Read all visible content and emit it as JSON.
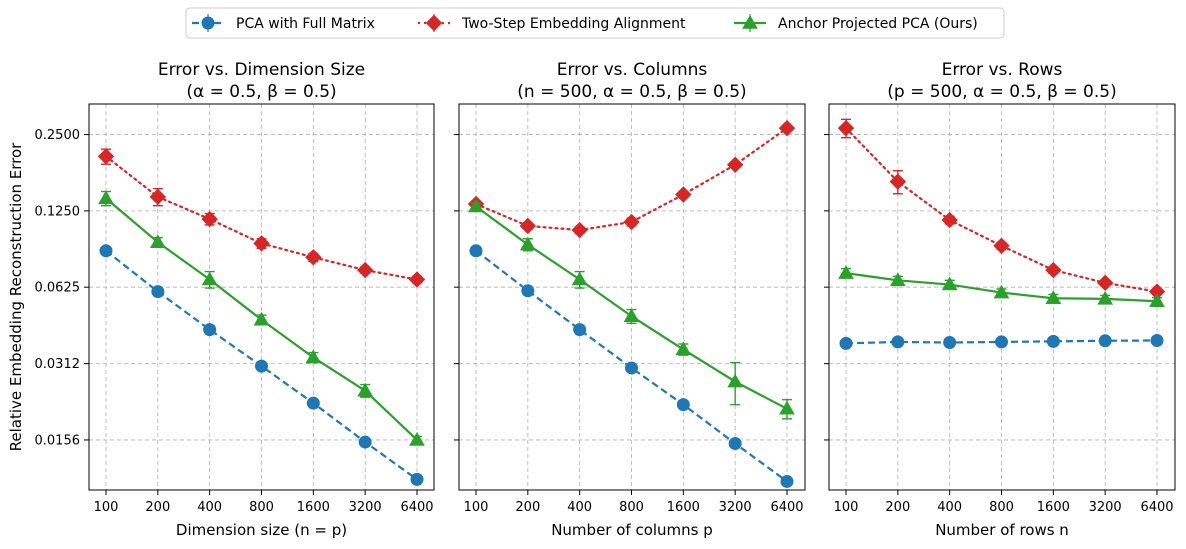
{
  "chart_data": [
    {
      "type": "line",
      "title": "Error vs. Dimension Size",
      "subtitle": "(α = 0.5, β = 0.5)",
      "xlabel": "Dimension size (n = p)",
      "ylabel": "Relative Embedding Reconstruction Error",
      "x": [
        100,
        200,
        400,
        800,
        1600,
        3200,
        6400
      ],
      "x_tick_labels": [
        "100",
        "200",
        "400",
        "800",
        "1600",
        "3200",
        "6400"
      ],
      "y_tick_values": [
        0.0156,
        0.0312,
        0.0625,
        0.125,
        0.25
      ],
      "y_tick_labels": [
        "0.0156",
        "0.0312",
        "0.0625",
        "0.1250",
        "0.2500"
      ],
      "ylim": [
        0.0099,
        0.33
      ],
      "yscale": "log2",
      "series": [
        {
          "name": "PCA with Full Matrix",
          "values": [
            0.087,
            0.06,
            0.0425,
            0.0305,
            0.0218,
            0.0153,
            0.0109
          ],
          "err": [
            0,
            0,
            0,
            0,
            0,
            0,
            0
          ]
        },
        {
          "name": "Two-Step Embedding Alignment",
          "values": [
            0.205,
            0.142,
            0.116,
            0.093,
            0.082,
            0.073,
            0.067
          ],
          "err": [
            0.014,
            0.011,
            0.006,
            0.004,
            0.003,
            0.002,
            0.002
          ]
        },
        {
          "name": "Anchor Projected PCA (Ours)",
          "values": [
            0.14,
            0.094,
            0.067,
            0.0465,
            0.033,
            0.0244,
            0.0156
          ],
          "err": [
            0.009,
            0.004,
            0.005,
            0.002,
            0.0015,
            0.0014,
            0.0005
          ]
        }
      ]
    },
    {
      "type": "line",
      "title": "Error vs. Columns",
      "subtitle": "(n = 500, α = 0.5, β = 0.5)",
      "xlabel": "Number of columns p",
      "ylabel": "",
      "x": [
        100,
        200,
        400,
        800,
        1600,
        3200,
        6400
      ],
      "x_tick_labels": [
        "100",
        "200",
        "400",
        "800",
        "1600",
        "3200",
        "6400"
      ],
      "y_tick_values": [
        0.0156,
        0.0312,
        0.0625,
        0.125,
        0.25
      ],
      "ylim": [
        0.0099,
        0.33
      ],
      "yscale": "log2",
      "series": [
        {
          "name": "PCA with Full Matrix",
          "values": [
            0.087,
            0.0605,
            0.0425,
            0.03,
            0.0215,
            0.0151,
            0.0107
          ],
          "err": [
            0,
            0,
            0,
            0,
            0,
            0,
            0
          ]
        },
        {
          "name": "Two-Step Embedding Alignment",
          "values": [
            0.133,
            0.109,
            0.105,
            0.113,
            0.145,
            0.19,
            0.265
          ],
          "err": [
            0.003,
            0.003,
            0.003,
            0.004,
            0.004,
            0.004,
            0.006
          ]
        },
        {
          "name": "Anchor Projected PCA (Ours)",
          "values": [
            0.13,
            0.092,
            0.067,
            0.048,
            0.0355,
            0.0265,
            0.0207
          ],
          "err": [
            0.004,
            0.005,
            0.005,
            0.003,
            0.0018,
            0.005,
            0.0018
          ]
        }
      ]
    },
    {
      "type": "line",
      "title": "Error vs. Rows",
      "subtitle": "(p = 500, α = 0.5, β = 0.5)",
      "xlabel": "Number of rows n",
      "ylabel": "",
      "x": [
        100,
        200,
        400,
        800,
        1600,
        3200,
        6400
      ],
      "x_tick_labels": [
        "100",
        "200",
        "400",
        "800",
        "1600",
        "3200",
        "6400"
      ],
      "y_tick_values": [
        0.0156,
        0.0312,
        0.0625,
        0.125,
        0.25
      ],
      "ylim": [
        0.0099,
        0.33
      ],
      "yscale": "log2",
      "series": [
        {
          "name": "PCA with Full Matrix",
          "values": [
            0.0375,
            0.038,
            0.0378,
            0.038,
            0.0382,
            0.0384,
            0.0385
          ],
          "err": [
            0.001,
            0.0007,
            0.0006,
            0.0006,
            0.0006,
            0.0006,
            0.0006
          ]
        },
        {
          "name": "Two-Step Embedding Alignment",
          "values": [
            0.265,
            0.163,
            0.115,
            0.091,
            0.073,
            0.065,
            0.06
          ],
          "err": [
            0.022,
            0.017,
            0.004,
            0.003,
            0.002,
            0.0015,
            0.0015
          ]
        },
        {
          "name": "Anchor Projected PCA (Ours)",
          "values": [
            0.071,
            0.0665,
            0.064,
            0.0595,
            0.0565,
            0.0562,
            0.055
          ],
          "err": [
            0.003,
            0.0025,
            0.0025,
            0.002,
            0.002,
            0.0018,
            0.0018
          ]
        }
      ]
    }
  ],
  "legend": {
    "position": "top-center",
    "entries": [
      {
        "label": "PCA with Full Matrix",
        "color": "#1f77b4",
        "marker": "circle",
        "linestyle": "dashed"
      },
      {
        "label": "Two-Step Embedding Alignment",
        "color": "#d62728",
        "marker": "diamond",
        "linestyle": "dotted"
      },
      {
        "label": "Anchor Projected PCA (Ours)",
        "color": "#2ca02c",
        "marker": "triangle",
        "linestyle": "solid"
      }
    ]
  }
}
